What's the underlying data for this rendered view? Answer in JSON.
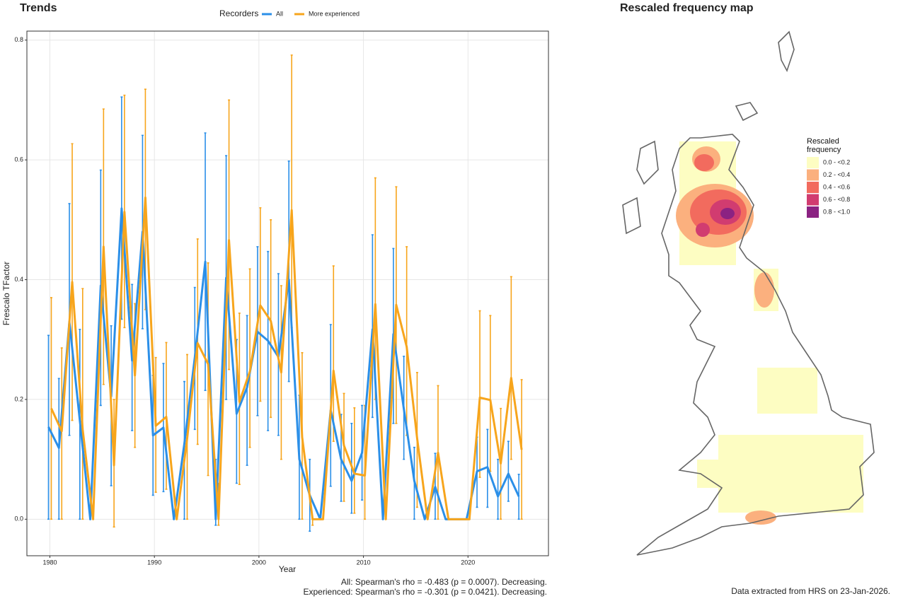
{
  "chart_data": [
    {
      "type": "line",
      "title": "Trends",
      "legend_title": "Recorders",
      "x_label": "Year",
      "y_label": "Frescalo TFactor",
      "x": [
        1980,
        1981,
        1982,
        1983,
        1984,
        1985,
        1986,
        1987,
        1988,
        1989,
        1990,
        1991,
        1992,
        1993,
        1994,
        1995,
        1996,
        1997,
        1998,
        1999,
        2000,
        2001,
        2002,
        2003,
        2004,
        2005,
        2006,
        2007,
        2008,
        2009,
        2010,
        2011,
        2012,
        2013,
        2014,
        2015,
        2016,
        2017,
        2018,
        2019,
        2020,
        2021,
        2022,
        2023,
        2024,
        2025
      ],
      "series": [
        {
          "name": "All",
          "color": "#2b8fe8",
          "values": [
            0.154,
            0.119,
            0.33,
            0.165,
            0,
            0.39,
            0.205,
            0.519,
            0.265,
            0.48,
            0.14,
            0.153,
            0,
            0.126,
            0.27,
            0.43,
            0,
            0.403,
            0.176,
            0.22,
            0.313,
            0.298,
            0.271,
            0.4,
            0.1,
            0.04,
            0,
            0.182,
            0.1,
            0.064,
            0.111,
            0.317,
            0,
            0.309,
            0.184,
            0.064,
            0,
            0.054,
            0,
            0,
            0,
            0.08,
            0.087,
            0.038,
            0.076,
            0.038
          ],
          "lower": [
            0,
            0,
            0.14,
            0,
            0,
            0.19,
            0.056,
            0.334,
            0.148,
            0.318,
            0.04,
            0.046,
            0,
            0,
            0.15,
            0.215,
            -0.01,
            0.2,
            0.06,
            0.09,
            0.173,
            0.148,
            0.14,
            0.23,
            0,
            -0.02,
            0,
            0.055,
            0.03,
            0.01,
            0.032,
            0.17,
            0,
            0.16,
            0.1,
            0,
            0,
            0,
            0,
            0,
            0,
            0.02,
            0.02,
            0,
            0.03,
            0
          ],
          "upper": [
            0.307,
            0.235,
            0.527,
            0.317,
            0,
            0.583,
            0.323,
            0.705,
            0.392,
            0.641,
            0.24,
            0.26,
            0,
            0.23,
            0.387,
            0.645,
            0.1,
            0.607,
            0.3,
            0.34,
            0.455,
            0.447,
            0.41,
            0.598,
            0.207,
            0.1,
            0,
            0.325,
            0.175,
            0.16,
            0.19,
            0.475,
            0,
            0.452,
            0.272,
            0.12,
            0,
            0.11,
            0,
            0,
            0,
            0.137,
            0.15,
            0.1,
            0.13,
            0.075
          ]
        },
        {
          "name": "More experienced",
          "color": "#f7a51c",
          "values": [
            0.185,
            0.147,
            0.396,
            0.15,
            0,
            0.455,
            0.09,
            0.513,
            0.24,
            0.537,
            0.156,
            0.171,
            0,
            0.135,
            0.294,
            0.259,
            0,
            0.466,
            0.196,
            0.247,
            0.357,
            0.331,
            0.245,
            0.516,
            0.137,
            0,
            0,
            0.248,
            0.123,
            0.076,
            0.073,
            0.359,
            0,
            0.358,
            0.288,
            0.135,
            0,
            0.111,
            0,
            0,
            0,
            0.203,
            0.199,
            0.093,
            0.236,
            0.116
          ],
          "lower": [
            0,
            0,
            0.165,
            0,
            0,
            0.225,
            -0.013,
            0.32,
            0.12,
            0.35,
            0.045,
            0.05,
            0,
            0,
            0.125,
            0.073,
            -0.01,
            0.25,
            0.058,
            0.12,
            0.197,
            0.17,
            0.1,
            0.32,
            0,
            -0.01,
            0,
            0.13,
            0.03,
            0.01,
            0,
            0.2,
            0,
            0.16,
            0.14,
            0.02,
            0,
            0,
            0,
            0,
            0,
            0.07,
            0.08,
            0,
            0.1,
            0
          ],
          "upper": [
            0.37,
            0.286,
            0.627,
            0.385,
            0,
            0.685,
            0.2,
            0.708,
            0.36,
            0.718,
            0.27,
            0.295,
            0,
            0.275,
            0.468,
            0.428,
            0.06,
            0.7,
            0.344,
            0.418,
            0.52,
            0.5,
            0.39,
            0.775,
            0.278,
            0,
            0,
            0.423,
            0.21,
            0.186,
            0.19,
            0.57,
            0,
            0.555,
            0.455,
            0.245,
            0,
            0.223,
            0,
            0,
            0,
            0.348,
            0.34,
            0.185,
            0.405,
            0.233
          ]
        }
      ],
      "xlim": [
        1977.8,
        2027.7
      ],
      "xticks": [
        1980,
        1990,
        2000,
        2010,
        2020
      ],
      "ylim": [
        -0.061,
        0.815
      ],
      "yticks": [
        {
          "value": 0,
          "label": "0.0"
        },
        0.2,
        0.4,
        0.6,
        0.8
      ],
      "grid": true,
      "annotations": [
        "All: Spearman's rho = -0.483 (p = 0.0007). Decreasing.",
        "Experienced: Spearman's rho = -0.301 (p = 0.0421). Decreasing."
      ]
    },
    {
      "type": "map",
      "title": "Rescaled frequency map",
      "legend_title": "Rescaled frequency",
      "legend": [
        {
          "label": "0.0 - <0.2",
          "color": "#fdfdc2"
        },
        {
          "label": "0.2 - <0.4",
          "color": "#fbb07e"
        },
        {
          "label": "0.4 - <0.6",
          "color": "#f26b5e"
        },
        {
          "label": "0.6 - <0.8",
          "color": "#d13c70"
        },
        {
          "label": "0.8 - <1.0",
          "color": "#8b2282"
        }
      ],
      "caption": "Data extracted from HRS on 23-Jan-2026."
    }
  ]
}
